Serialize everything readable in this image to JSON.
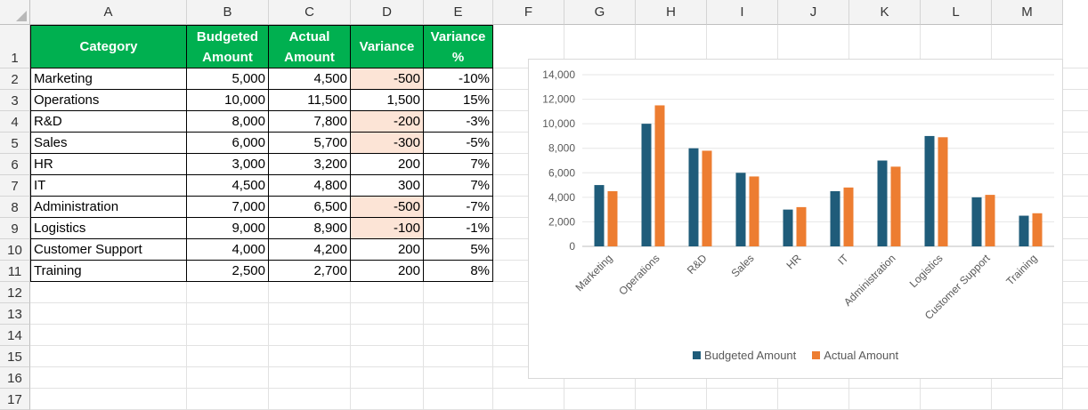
{
  "columns": [
    "A",
    "B",
    "C",
    "D",
    "E",
    "F",
    "G",
    "H",
    "I",
    "J",
    "K",
    "L",
    "M"
  ],
  "rows": [
    "1",
    "2",
    "3",
    "4",
    "5",
    "6",
    "7",
    "8",
    "9",
    "10",
    "11",
    "12",
    "13",
    "14",
    "15",
    "16",
    "17"
  ],
  "table": {
    "headers": [
      "Category",
      "Budgeted Amount",
      "Actual Amount",
      "Variance",
      "Variance %"
    ],
    "rows": [
      {
        "category": "Marketing",
        "budget": "5,000",
        "actual": "4,500",
        "variance": "-500",
        "pct": "-10%",
        "negative": true
      },
      {
        "category": "Operations",
        "budget": "10,000",
        "actual": "11,500",
        "variance": "1,500",
        "pct": "15%",
        "negative": false
      },
      {
        "category": "R&D",
        "budget": "8,000",
        "actual": "7,800",
        "variance": "-200",
        "pct": "-3%",
        "negative": true
      },
      {
        "category": "Sales",
        "budget": "6,000",
        "actual": "5,700",
        "variance": "-300",
        "pct": "-5%",
        "negative": true
      },
      {
        "category": "HR",
        "budget": "3,000",
        "actual": "3,200",
        "variance": "200",
        "pct": "7%",
        "negative": false
      },
      {
        "category": "IT",
        "budget": "4,500",
        "actual": "4,800",
        "variance": "300",
        "pct": "7%",
        "negative": false
      },
      {
        "category": "Administration",
        "budget": "7,000",
        "actual": "6,500",
        "variance": "-500",
        "pct": "-7%",
        "negative": true
      },
      {
        "category": "Logistics",
        "budget": "9,000",
        "actual": "8,900",
        "variance": "-100",
        "pct": "-1%",
        "negative": true
      },
      {
        "category": "Customer Support",
        "budget": "4,000",
        "actual": "4,200",
        "variance": "200",
        "pct": "5%",
        "negative": false
      },
      {
        "category": "Training",
        "budget": "2,500",
        "actual": "2,700",
        "variance": "200",
        "pct": "8%",
        "negative": false
      }
    ]
  },
  "colors": {
    "header_green": "#00b050",
    "negative_fill": "#fce4d6",
    "budget": "#1f5c7a",
    "actual": "#ed7d31"
  },
  "chart_data": {
    "type": "bar",
    "categories": [
      "Marketing",
      "Operations",
      "R&D",
      "Sales",
      "HR",
      "IT",
      "Administration",
      "Logistics",
      "Customer Support",
      "Training"
    ],
    "series": [
      {
        "name": "Budgeted Amount",
        "values": [
          5000,
          10000,
          8000,
          6000,
          3000,
          4500,
          7000,
          9000,
          4000,
          2500
        ]
      },
      {
        "name": "Actual Amount",
        "values": [
          4500,
          11500,
          7800,
          5700,
          3200,
          4800,
          6500,
          8900,
          4200,
          2700
        ]
      }
    ],
    "ylim": [
      0,
      14000
    ],
    "yticks": [
      "0",
      "2,000",
      "4,000",
      "6,000",
      "8,000",
      "10,000",
      "12,000",
      "14,000"
    ],
    "grid": true,
    "legend": "bottom"
  }
}
